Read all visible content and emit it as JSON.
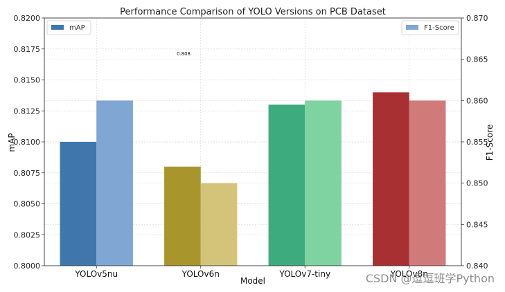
{
  "chart_data": {
    "type": "bar",
    "title": "Performance Comparison of YOLO Versions on PCB Dataset",
    "xlabel": "Model",
    "ylabel": "mAP",
    "y2label": "F1-Score",
    "categories": [
      "YOLOv5nu",
      "YOLOv6n",
      "YOLOv7-tiny",
      "YOLOv8n"
    ],
    "series": [
      {
        "name": "mAP",
        "axis": "left",
        "values": [
          0.81,
          0.808,
          0.813,
          0.814
        ],
        "colors": [
          "#3f77ad",
          "#a8962d",
          "#3dab7e",
          "#a83033"
        ]
      },
      {
        "name": "F1-Score",
        "axis": "right",
        "values": [
          0.86,
          0.85,
          0.86,
          0.86
        ],
        "colors": [
          "#80a6d4",
          "#d4c47a",
          "#7fd3a1",
          "#d17a7a"
        ]
      }
    ],
    "ylim": [
      0.8,
      0.82
    ],
    "yticks": [
      "0.8000",
      "0.8025",
      "0.8050",
      "0.8075",
      "0.8100",
      "0.8125",
      "0.8150",
      "0.8175",
      "0.8200"
    ],
    "y2lim": [
      0.84,
      0.87
    ],
    "y2ticks": [
      "0.840",
      "0.845",
      "0.850",
      "0.855",
      "0.860",
      "0.865",
      "0.870"
    ],
    "grid": true,
    "legend_left": "mAP",
    "legend_right": "F1-Score",
    "annotation": "0.808"
  },
  "watermark": "CSDN @逗逗班学Python"
}
